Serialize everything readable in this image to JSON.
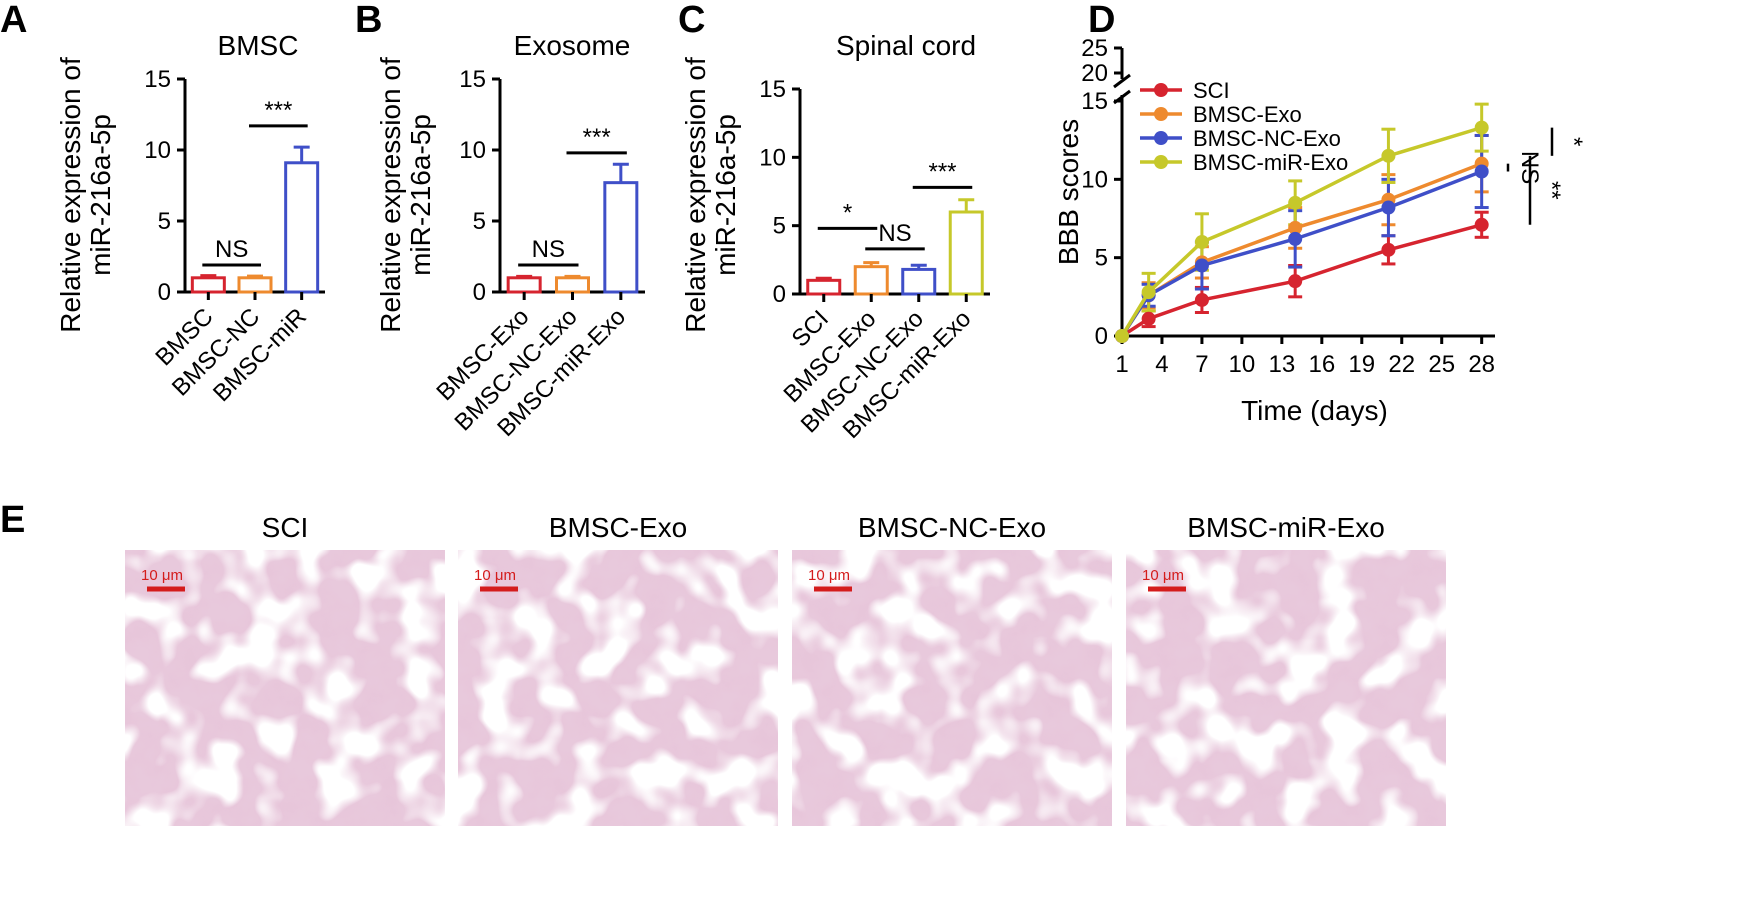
{
  "chart_data": [
    {
      "panel": "A",
      "type": "bar",
      "title": "BMSC",
      "ylabel": "Relative expression of miR-216a-5p",
      "ylabel_lines": [
        "Relative expression of",
        "miR-216a-5p"
      ],
      "ylim": [
        0,
        15
      ],
      "yticks": [
        0,
        5,
        10,
        15
      ],
      "categories": [
        "BMSC",
        "BMSC-NC",
        "BMSC-miR"
      ],
      "values": [
        1.0,
        1.0,
        9.1
      ],
      "errors": [
        0.15,
        0.12,
        1.1
      ],
      "colors": [
        "#d6242f",
        "#ee8a2e",
        "#3f4fc8"
      ],
      "annotations": [
        {
          "from": 0,
          "to": 1,
          "y": 1.9,
          "label": "NS"
        },
        {
          "from": 1,
          "to": 2,
          "y": 11.7,
          "label": "***"
        }
      ]
    },
    {
      "panel": "B",
      "type": "bar",
      "title": "Exosome",
      "ylabel": "Relative expression of miR-216a-5p",
      "ylabel_lines": [
        "Relative expression of",
        "miR-216a-5p"
      ],
      "ylim": [
        0,
        15
      ],
      "yticks": [
        0,
        5,
        10,
        15
      ],
      "categories": [
        "BMSC-Exo",
        "BMSC-NC-Exo",
        "BMSC-miR-Exo"
      ],
      "values": [
        1.0,
        1.0,
        7.7
      ],
      "errors": [
        0.1,
        0.1,
        1.3
      ],
      "colors": [
        "#d6242f",
        "#ee8a2e",
        "#3f4fc8"
      ],
      "annotations": [
        {
          "from": 0,
          "to": 1,
          "y": 1.9,
          "label": "NS"
        },
        {
          "from": 1,
          "to": 2,
          "y": 9.8,
          "label": "***"
        }
      ]
    },
    {
      "panel": "C",
      "type": "bar",
      "title": "Spinal cord",
      "ylabel": "Relative expression of miR-216a-5p",
      "ylabel_lines": [
        "Relative expression of",
        "miR-216a-5p"
      ],
      "ylim": [
        0,
        15
      ],
      "yticks": [
        0,
        5,
        10,
        15
      ],
      "categories": [
        "SCI",
        "BMSC-Exo",
        "BMSC-NC-Exo",
        "BMSC-miR-Exo"
      ],
      "values": [
        1.0,
        2.0,
        1.8,
        6.0
      ],
      "errors": [
        0.15,
        0.3,
        0.3,
        0.9
      ],
      "colors": [
        "#d6242f",
        "#ee8a2e",
        "#3f4fc8",
        "#c6c82a"
      ],
      "annotations": [
        {
          "from": 0,
          "to": 1,
          "y": 4.8,
          "label": "*"
        },
        {
          "from": 1,
          "to": 2,
          "y": 3.3,
          "label": "NS"
        },
        {
          "from": 2,
          "to": 3,
          "y": 7.8,
          "label": "***"
        }
      ]
    },
    {
      "panel": "D",
      "type": "line",
      "xlabel": "Time (days)",
      "ylabel": "BBB scores",
      "xticks": [
        1,
        4,
        7,
        10,
        13,
        16,
        19,
        22,
        25,
        28
      ],
      "xlim": [
        1,
        29
      ],
      "yticks_lower": [
        0,
        5,
        10,
        15
      ],
      "yticks_upper": [
        20,
        25
      ],
      "ylim_lower": [
        0,
        15
      ],
      "ylim_upper": [
        20,
        25
      ],
      "x": [
        1,
        3,
        7,
        14,
        21,
        28
      ],
      "series": [
        {
          "name": "SCI",
          "color": "#d6242f",
          "values": [
            0,
            1.1,
            2.3,
            3.5,
            5.5,
            7.1
          ],
          "errors": [
            0,
            0.5,
            0.8,
            1.0,
            0.9,
            0.8
          ]
        },
        {
          "name": "BMSC-Exo",
          "color": "#ee8a2e",
          "values": [
            0,
            2.6,
            4.7,
            6.9,
            8.7,
            11.0
          ],
          "errors": [
            0,
            0.8,
            1.0,
            1.3,
            1.6,
            1.8
          ]
        },
        {
          "name": "BMSC-NC-Exo",
          "color": "#3f4fc8",
          "values": [
            0,
            2.6,
            4.5,
            6.2,
            8.2,
            10.5
          ],
          "errors": [
            0,
            0.7,
            1.5,
            1.8,
            1.8,
            2.3
          ]
        },
        {
          "name": "BMSC-miR-Exo",
          "color": "#c6c82a",
          "values": [
            0,
            2.8,
            6.0,
            8.5,
            11.5,
            13.3
          ],
          "errors": [
            0,
            1.2,
            1.8,
            1.4,
            1.7,
            1.5
          ]
        }
      ],
      "significance": [
        {
          "label": "NS",
          "from": 10.5,
          "to": 11.0
        },
        {
          "label": "**",
          "from": 7.1,
          "to": 11.5
        },
        {
          "label": "*",
          "from": 11.5,
          "to": 13.3
        }
      ]
    }
  ],
  "panel_e": {
    "label": "E",
    "images": [
      {
        "title": "SCI",
        "scale": "10 μm"
      },
      {
        "title": "BMSC-Exo",
        "scale": "10 μm"
      },
      {
        "title": "BMSC-NC-Exo",
        "scale": "10 μm"
      },
      {
        "title": "BMSC-miR-Exo",
        "scale": "10 μm"
      }
    ]
  }
}
